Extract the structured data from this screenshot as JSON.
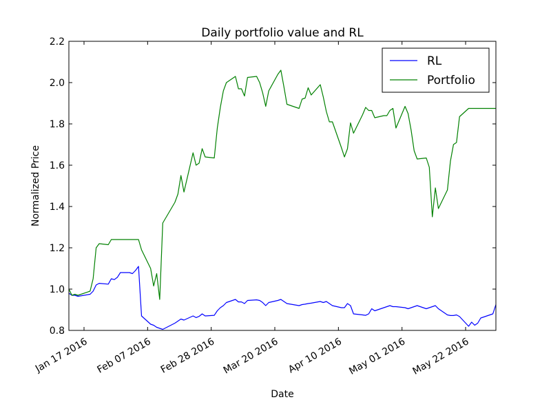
{
  "chart_data": {
    "type": "line",
    "title": "Daily portfolio value and RL",
    "xlabel": "Date",
    "ylabel": "Normalized Price",
    "xlim": [
      "2016-01-12",
      "2016-06-01"
    ],
    "ylim": [
      0.8,
      2.2
    ],
    "yticks": [
      "0.8",
      "1.0",
      "1.2",
      "1.4",
      "1.6",
      "1.8",
      "2.0",
      "2.2"
    ],
    "xticks": [
      {
        "date": "2016-01-17",
        "label": "Jan 17 2016"
      },
      {
        "date": "2016-02-07",
        "label": "Feb 07 2016"
      },
      {
        "date": "2016-02-28",
        "label": "Feb 28 2016"
      },
      {
        "date": "2016-03-20",
        "label": "Mar 20 2016"
      },
      {
        "date": "2016-04-10",
        "label": "Apr 10 2016"
      },
      {
        "date": "2016-05-01",
        "label": "May 01 2016"
      },
      {
        "date": "2016-05-22",
        "label": "May 22 2016"
      }
    ],
    "grid": false,
    "legend_position": "top-right",
    "series": [
      {
        "name": "RL",
        "color": "#0000ff",
        "x": [
          "2016-01-12",
          "2016-01-13",
          "2016-01-14",
          "2016-01-15",
          "2016-01-19",
          "2016-01-20",
          "2016-01-21",
          "2016-01-22",
          "2016-01-25",
          "2016-01-26",
          "2016-01-27",
          "2016-01-28",
          "2016-01-29",
          "2016-02-01",
          "2016-02-02",
          "2016-02-03",
          "2016-02-04",
          "2016-02-05",
          "2016-02-08",
          "2016-02-09",
          "2016-02-10",
          "2016-02-11",
          "2016-02-12",
          "2016-02-16",
          "2016-02-17",
          "2016-02-18",
          "2016-02-19",
          "2016-02-22",
          "2016-02-23",
          "2016-02-24",
          "2016-02-25",
          "2016-02-26",
          "2016-02-29",
          "2016-03-01",
          "2016-03-02",
          "2016-03-03",
          "2016-03-04",
          "2016-03-07",
          "2016-03-08",
          "2016-03-09",
          "2016-03-10",
          "2016-03-11",
          "2016-03-14",
          "2016-03-15",
          "2016-03-16",
          "2016-03-17",
          "2016-03-18",
          "2016-03-21",
          "2016-03-22",
          "2016-03-23",
          "2016-03-24",
          "2016-03-28",
          "2016-03-29",
          "2016-03-30",
          "2016-03-31",
          "2016-04-01",
          "2016-04-04",
          "2016-04-05",
          "2016-04-06",
          "2016-04-07",
          "2016-04-08",
          "2016-04-11",
          "2016-04-12",
          "2016-04-13",
          "2016-04-14",
          "2016-04-15",
          "2016-04-18",
          "2016-04-19",
          "2016-04-20",
          "2016-04-21",
          "2016-04-22",
          "2016-04-25",
          "2016-04-26",
          "2016-04-27",
          "2016-04-28",
          "2016-04-29",
          "2016-05-02",
          "2016-05-03",
          "2016-05-04",
          "2016-05-05",
          "2016-05-06",
          "2016-05-09",
          "2016-05-10",
          "2016-05-11",
          "2016-05-12",
          "2016-05-13",
          "2016-05-16",
          "2016-05-17",
          "2016-05-18",
          "2016-05-19",
          "2016-05-20",
          "2016-05-23",
          "2016-05-24",
          "2016-05-25",
          "2016-05-26",
          "2016-05-27",
          "2016-05-31",
          "2016-06-01"
        ],
        "y": [
          0.98,
          0.97,
          0.97,
          0.965,
          0.975,
          0.99,
          1.02,
          1.028,
          1.024,
          1.05,
          1.046,
          1.057,
          1.08,
          1.08,
          1.075,
          1.09,
          1.11,
          0.87,
          0.83,
          0.825,
          0.815,
          0.81,
          0.805,
          0.835,
          0.845,
          0.855,
          0.85,
          0.87,
          0.862,
          0.868,
          0.88,
          0.87,
          0.873,
          0.895,
          0.91,
          0.92,
          0.935,
          0.95,
          0.938,
          0.938,
          0.93,
          0.945,
          0.948,
          0.945,
          0.935,
          0.92,
          0.935,
          0.945,
          0.95,
          0.94,
          0.93,
          0.92,
          0.925,
          0.927,
          0.93,
          0.932,
          0.94,
          0.935,
          0.94,
          0.93,
          0.92,
          0.91,
          0.91,
          0.93,
          0.92,
          0.88,
          0.875,
          0.873,
          0.88,
          0.905,
          0.895,
          0.91,
          0.915,
          0.92,
          0.915,
          0.915,
          0.91,
          0.905,
          0.91,
          0.915,
          0.92,
          0.905,
          0.91,
          0.915,
          0.92,
          0.905,
          0.875,
          0.872,
          0.872,
          0.875,
          0.867,
          0.82,
          0.84,
          0.825,
          0.835,
          0.86,
          0.88,
          0.925
        ]
      },
      {
        "name": "Portfolio",
        "color": "#008000",
        "x": [
          "2016-01-12",
          "2016-01-13",
          "2016-01-14",
          "2016-01-15",
          "2016-01-19",
          "2016-01-20",
          "2016-01-21",
          "2016-01-22",
          "2016-01-25",
          "2016-01-26",
          "2016-01-27",
          "2016-01-28",
          "2016-01-29",
          "2016-02-01",
          "2016-02-02",
          "2016-02-03",
          "2016-02-04",
          "2016-02-05",
          "2016-02-08",
          "2016-02-09",
          "2016-02-10",
          "2016-02-11",
          "2016-02-12",
          "2016-02-16",
          "2016-02-17",
          "2016-02-18",
          "2016-02-19",
          "2016-02-22",
          "2016-02-23",
          "2016-02-24",
          "2016-02-25",
          "2016-02-26",
          "2016-02-29",
          "2016-03-01",
          "2016-03-02",
          "2016-03-03",
          "2016-03-04",
          "2016-03-07",
          "2016-03-08",
          "2016-03-09",
          "2016-03-10",
          "2016-03-11",
          "2016-03-14",
          "2016-03-15",
          "2016-03-16",
          "2016-03-17",
          "2016-03-18",
          "2016-03-21",
          "2016-03-22",
          "2016-03-23",
          "2016-03-24",
          "2016-03-28",
          "2016-03-29",
          "2016-03-30",
          "2016-03-31",
          "2016-04-01",
          "2016-04-04",
          "2016-04-05",
          "2016-04-06",
          "2016-04-07",
          "2016-04-08",
          "2016-04-11",
          "2016-04-12",
          "2016-04-13",
          "2016-04-14",
          "2016-04-15",
          "2016-04-18",
          "2016-04-19",
          "2016-04-20",
          "2016-04-21",
          "2016-04-22",
          "2016-04-25",
          "2016-04-26",
          "2016-04-27",
          "2016-04-28",
          "2016-04-29",
          "2016-05-02",
          "2016-05-03",
          "2016-05-04",
          "2016-05-05",
          "2016-05-06",
          "2016-05-09",
          "2016-05-10",
          "2016-05-11",
          "2016-05-12",
          "2016-05-13",
          "2016-05-16",
          "2016-05-17",
          "2016-05-18",
          "2016-05-19",
          "2016-05-20",
          "2016-05-23",
          "2016-05-24",
          "2016-05-25",
          "2016-05-26",
          "2016-05-27",
          "2016-05-31",
          "2016-06-01"
        ],
        "y": [
          1.0,
          0.97,
          0.975,
          0.97,
          0.99,
          1.05,
          1.2,
          1.22,
          1.215,
          1.24,
          1.24,
          1.24,
          1.24,
          1.24,
          1.24,
          1.24,
          1.24,
          1.19,
          1.1,
          1.015,
          1.075,
          0.95,
          1.32,
          1.42,
          1.46,
          1.55,
          1.47,
          1.66,
          1.6,
          1.61,
          1.68,
          1.64,
          1.635,
          1.78,
          1.88,
          1.96,
          2.0,
          2.03,
          1.97,
          1.97,
          1.935,
          2.025,
          2.03,
          2.0,
          1.95,
          1.885,
          1.96,
          2.04,
          2.06,
          1.98,
          1.895,
          1.875,
          1.92,
          1.925,
          1.975,
          1.94,
          1.99,
          1.93,
          1.86,
          1.81,
          1.81,
          1.685,
          1.64,
          1.68,
          1.805,
          1.755,
          1.845,
          1.88,
          1.865,
          1.865,
          1.83,
          1.84,
          1.84,
          1.865,
          1.875,
          1.78,
          1.885,
          1.85,
          1.77,
          1.67,
          1.63,
          1.635,
          1.59,
          1.35,
          1.49,
          1.39,
          1.48,
          1.62,
          1.7,
          1.71,
          1.835,
          1.875,
          1.875,
          1.875,
          1.875,
          1.875,
          1.875,
          1.875
        ]
      }
    ]
  }
}
